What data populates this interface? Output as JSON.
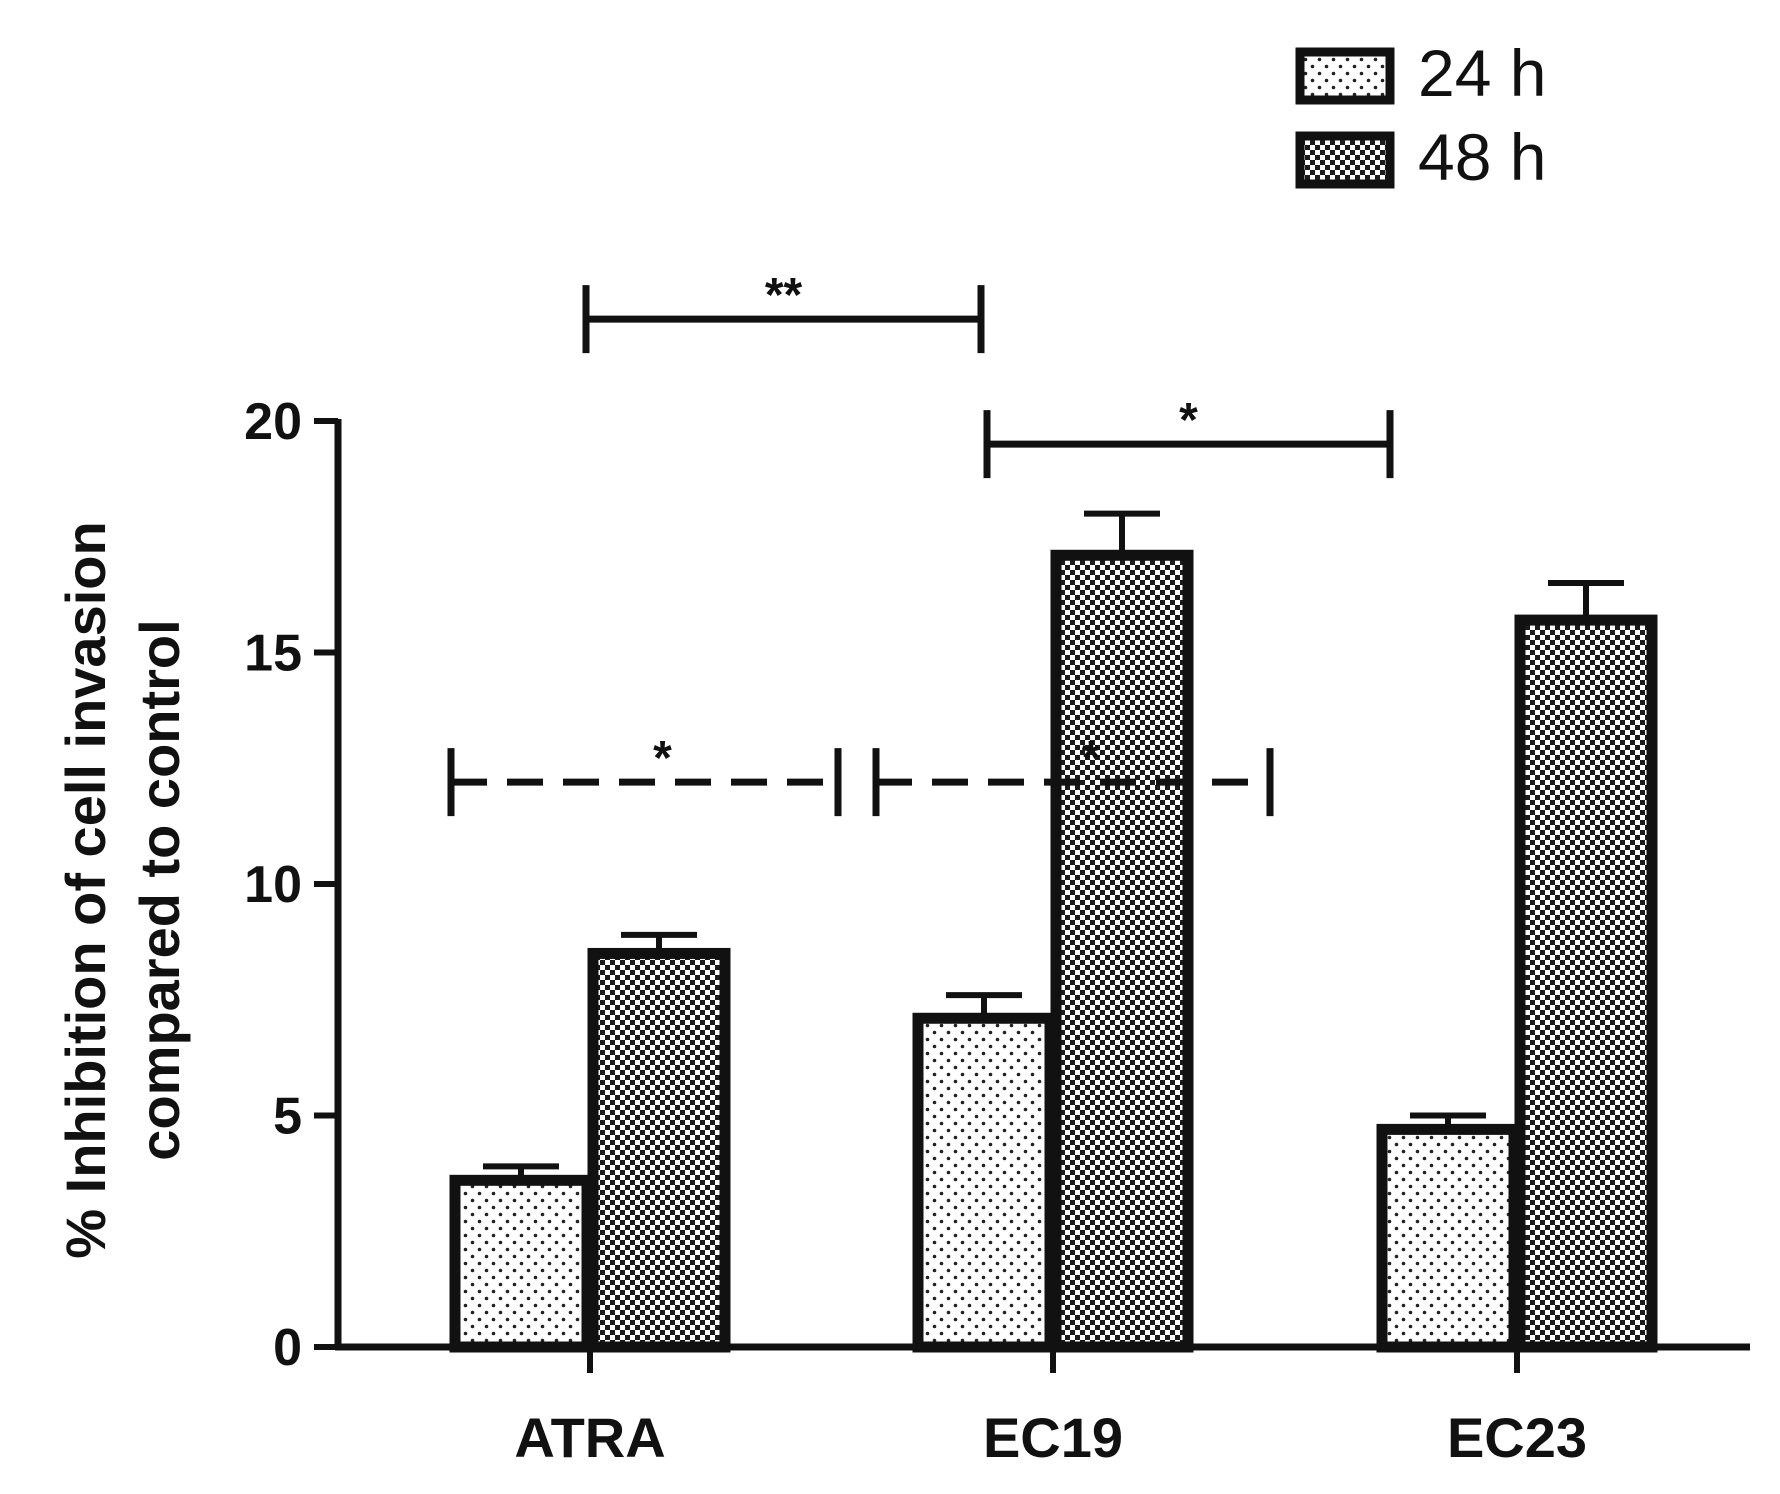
{
  "chart_data": {
    "type": "bar",
    "title": "",
    "xlabel": "",
    "ylabel_lines": [
      "% Inhibition of cell invasion",
      "compared to control"
    ],
    "categories": [
      "ATRA",
      "EC19",
      "EC23"
    ],
    "series": [
      {
        "name": "24 h",
        "values": [
          3.6,
          7.1,
          4.7
        ],
        "errors": [
          0.3,
          0.5,
          0.3
        ],
        "pattern": "sparse-dots"
      },
      {
        "name": "48 h",
        "values": [
          8.5,
          17.1,
          15.7
        ],
        "errors": [
          0.4,
          0.9,
          0.8
        ],
        "pattern": "checker"
      }
    ],
    "ylim": [
      0,
      20
    ],
    "yticks": [
      0,
      5,
      10,
      15,
      20
    ],
    "legend_position": "top-right",
    "grid": false,
    "annotations": [
      {
        "label": "**",
        "from": {
          "category": "ATRA",
          "series": "24 h"
        },
        "to": {
          "category": "EC19",
          "series": "48 h"
        },
        "y": 22.2,
        "style": "solid"
      },
      {
        "label": "*",
        "from": {
          "category": "EC19",
          "series": "48 h"
        },
        "to": {
          "category": "EC23",
          "series": "48 h"
        },
        "y": 19.5,
        "style": "solid"
      },
      {
        "label": "*",
        "from": {
          "category": "ATRA",
          "series": "24 h"
        },
        "to": {
          "category": "EC19",
          "series": "24 h"
        },
        "y": 12.2,
        "style": "dashed"
      },
      {
        "label": "*",
        "from": {
          "category": "EC19",
          "series": "24 h"
        },
        "to": {
          "category": "EC23",
          "series": "24 h"
        },
        "y": 12.2,
        "style": "dashed"
      }
    ]
  }
}
